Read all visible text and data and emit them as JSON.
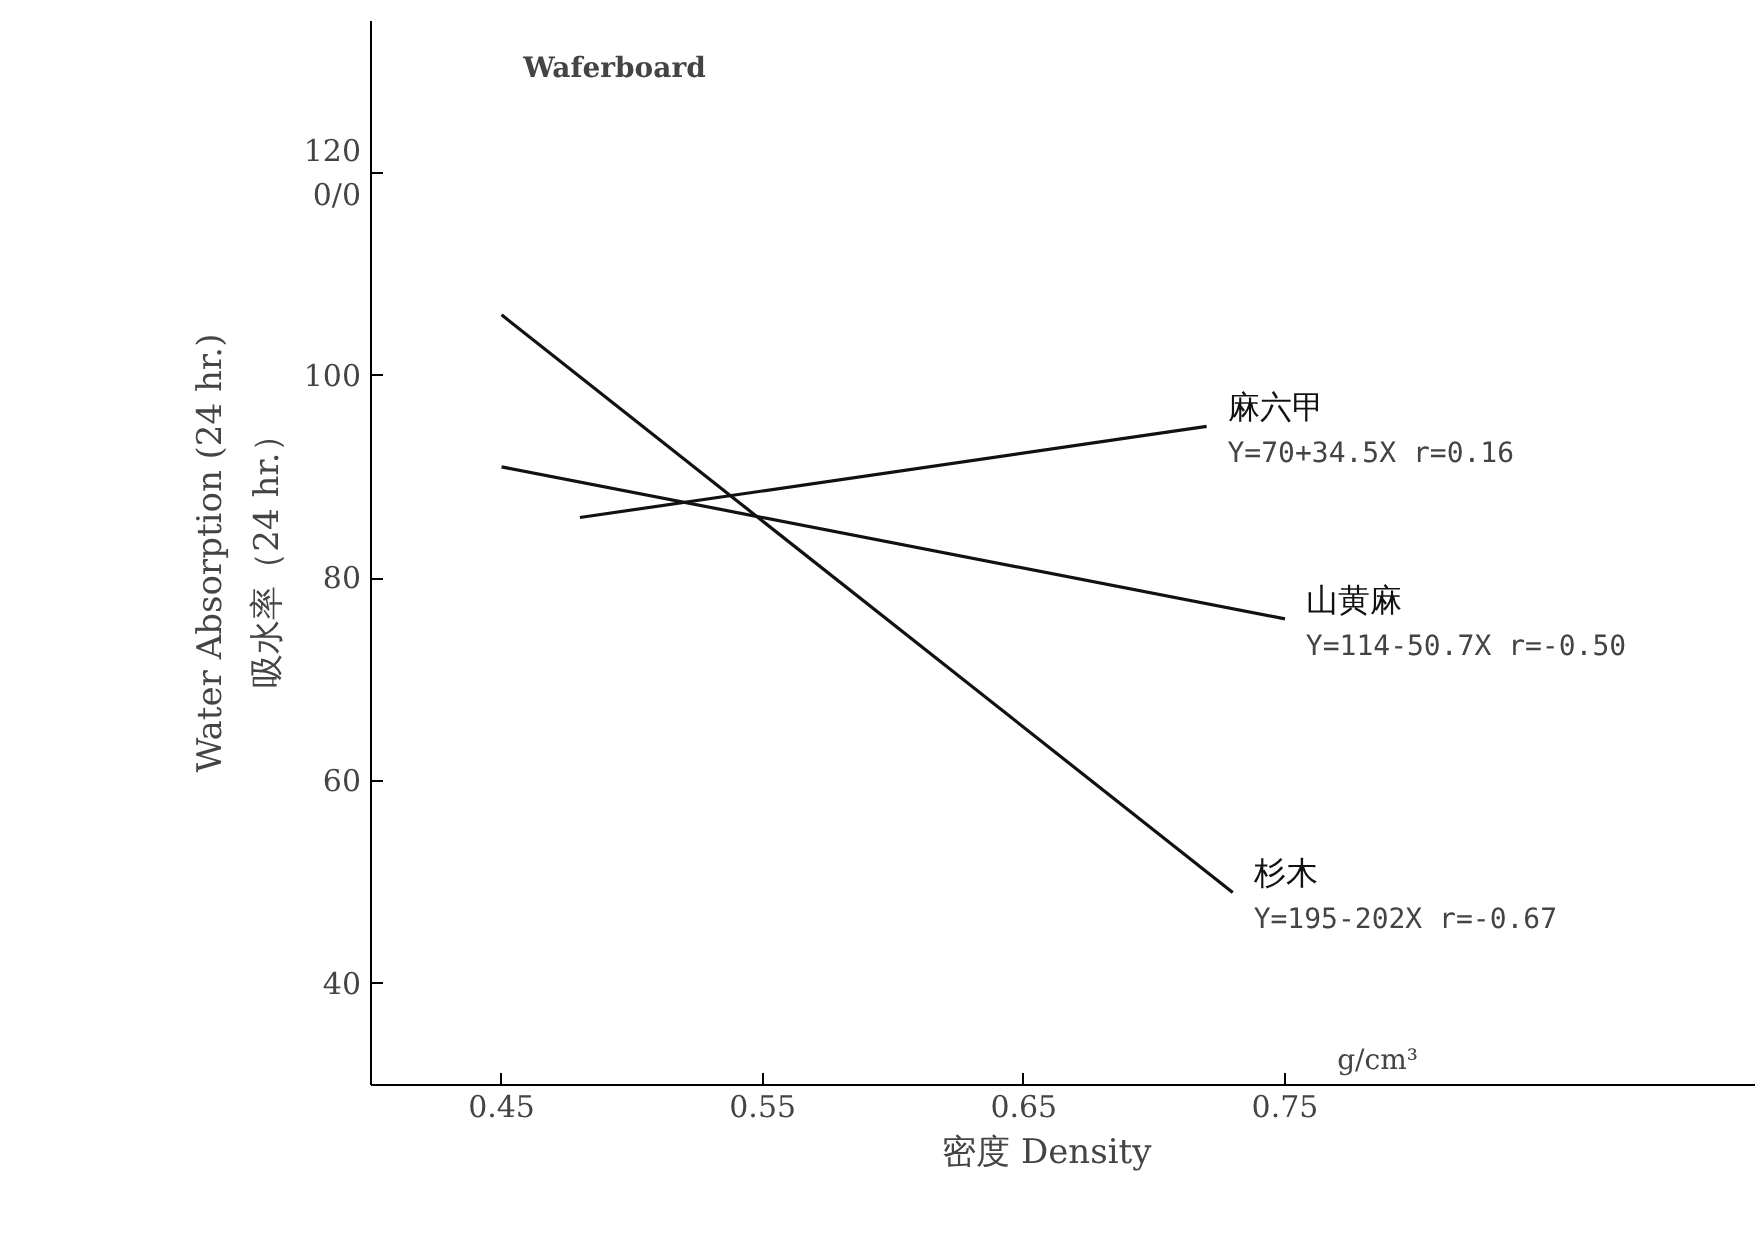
{
  "chart_data": {
    "type": "line",
    "title": "Waferboard",
    "xlabel": "密度    Density",
    "ylabel": "Water Absorption (24 hr.)",
    "series": [
      {
        "name": "麻六甲",
        "color": "#111111",
        "x": [
          0.48,
          0.72
        ],
        "values": [
          86,
          95
        ]
      },
      {
        "name": "山黄麻",
        "color": "#111111",
        "x": [
          0.45,
          0.75
        ],
        "values": [
          91,
          76
        ]
      },
      {
        "name": "杉木",
        "color": "#111111",
        "x": [
          0.45,
          0.73
        ],
        "values": [
          106,
          49
        ]
      }
    ],
    "annotations": [
      "Y=70+34.5X r=0.16",
      "Y=114-50.7X r=-0.50",
      "Y=195-202X r=-0.67",
      "0/0",
      "吸水率（24 hr.）",
      "g/cm³"
    ],
    "xlim": [
      0.4,
      0.93
    ],
    "ylim": [
      30,
      135
    ],
    "xticks": [
      0.45,
      0.55,
      0.65,
      0.75
    ],
    "yticks": [
      40,
      60,
      80,
      100,
      120
    ],
    "grid": false,
    "marker": "none",
    "line_style": "solid"
  }
}
